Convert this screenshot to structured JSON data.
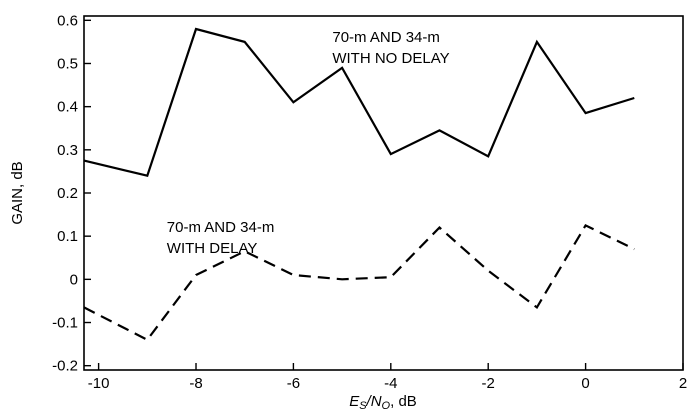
{
  "chart_data": {
    "type": "line",
    "title": "",
    "xlabel": {
      "main": "E",
      "sub1": "S",
      "mid": "/N",
      "sub2": "O",
      "tail": ", dB"
    },
    "ylabel": "GAIN, dB",
    "xlim": [
      -10.3,
      2
    ],
    "ylim": [
      -0.21,
      0.61
    ],
    "x_ticks": [
      -10,
      -8,
      -6,
      -4,
      -2,
      0,
      2
    ],
    "x_tick_labels": [
      "-10",
      "-8",
      "-6",
      "-4",
      "-2",
      "0",
      "2"
    ],
    "y_ticks": [
      -0.2,
      -0.1,
      0,
      0.1,
      0.2,
      0.3,
      0.4,
      0.5,
      0.6
    ],
    "y_tick_labels": [
      "-0.2",
      "-0.1",
      "0",
      "0.1",
      "0.2",
      "0.3",
      "0.4",
      "0.5",
      "0.6"
    ],
    "grid": false,
    "series": [
      {
        "style": "solid",
        "x": [
          -10.3,
          -9,
          -8,
          -7,
          -6,
          -5,
          -4,
          -3,
          -2,
          -1,
          0,
          1
        ],
        "y": [
          0.275,
          0.24,
          0.58,
          0.55,
          0.41,
          0.49,
          0.29,
          0.345,
          0.285,
          0.55,
          0.385,
          0.42
        ]
      },
      {
        "style": "dashed",
        "x": [
          -10.3,
          -9,
          -8,
          -7,
          -6,
          -5,
          -4,
          -3,
          -2,
          -1,
          0,
          1
        ],
        "y": [
          -0.065,
          -0.14,
          0.01,
          0.065,
          0.01,
          0.0,
          0.005,
          0.12,
          0.02,
          -0.065,
          0.125,
          0.07
        ]
      }
    ],
    "annotations": [
      {
        "lines": [
          "70-m AND 34-m",
          "WITH NO DELAY"
        ],
        "x": -5.2,
        "y": 0.55
      },
      {
        "lines": [
          "70-m AND 34-m",
          "WITH DELAY"
        ],
        "x": -8.6,
        "y": 0.11
      }
    ]
  }
}
